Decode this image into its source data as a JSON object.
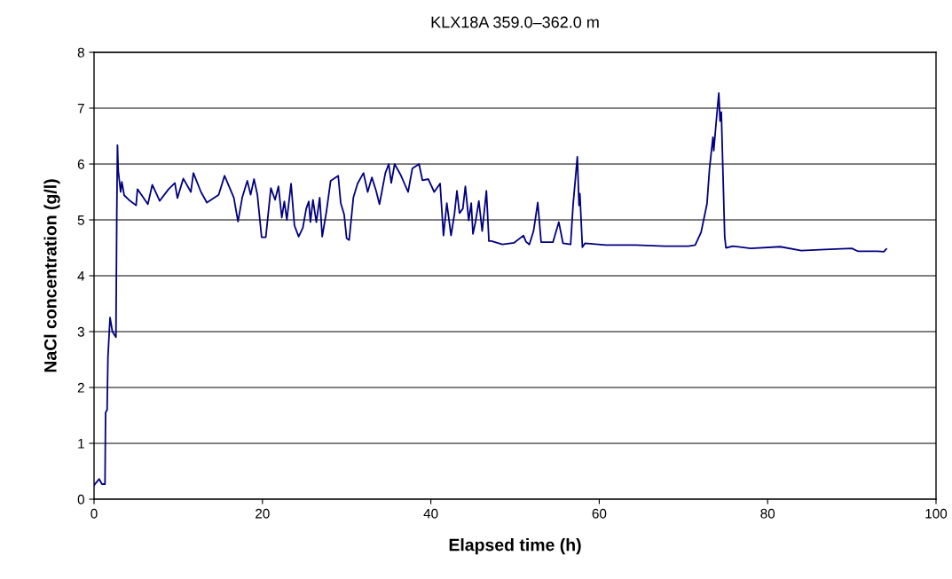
{
  "chart_data": {
    "type": "line",
    "title": "KLX18A 359.0–362.0 m",
    "xlabel": "Elapsed time (h)",
    "ylabel": "NaCl concentration (g/l)",
    "xlim": [
      0,
      100
    ],
    "xticks": [
      0,
      20,
      40,
      60,
      80,
      100
    ],
    "ylim": [
      0,
      8
    ],
    "yticks": [
      0,
      1,
      2,
      3,
      4,
      5,
      6,
      7,
      8
    ],
    "grid": "y",
    "marker": "none",
    "line_style": "solid",
    "series": [
      {
        "color": "#000080",
        "x": [
          0.0,
          0.6,
          0.95,
          1.3,
          1.37,
          1.55,
          1.65,
          1.83,
          1.9,
          2.18,
          2.6,
          2.7,
          2.78,
          2.88,
          3.16,
          3.3,
          3.58,
          4.28,
          4.99,
          5.16,
          6.39,
          6.92,
          7.8,
          8.85,
          9.6,
          9.9,
          10.6,
          11.5,
          11.8,
          12.7,
          13.4,
          14.8,
          15.5,
          16.6,
          17.1,
          17.6,
          18.2,
          18.6,
          19.0,
          19.4,
          19.9,
          20.4,
          21.0,
          21.5,
          21.9,
          22.3,
          22.6,
          22.9,
          23.4,
          23.8,
          24.3,
          24.8,
          25.2,
          25.5,
          25.7,
          26.0,
          26.4,
          26.8,
          27.1,
          27.6,
          28.1,
          29.0,
          29.3,
          29.7,
          30.0,
          30.3,
          30.8,
          31.3,
          32.0,
          32.5,
          33.0,
          33.5,
          33.9,
          34.2,
          34.6,
          35.0,
          35.3,
          35.7,
          36.4,
          37.3,
          37.8,
          38.6,
          39.0,
          39.7,
          40.4,
          41.1,
          41.5,
          41.9,
          42.4,
          42.8,
          43.1,
          43.4,
          43.8,
          44.1,
          44.5,
          44.8,
          45.0,
          45.3,
          45.7,
          46.1,
          46.6,
          46.9,
          47.2,
          48.5,
          49.9,
          51.0,
          51.3,
          51.7,
          52.2,
          52.7,
          53.1,
          54.5,
          55.2,
          55.7,
          56.6,
          56.9,
          57.4,
          57.6,
          57.7,
          58.0,
          58.3,
          60.8,
          64.3,
          67.8,
          70.6,
          71.4,
          72.1,
          72.8,
          73.1,
          73.5,
          73.6,
          73.9,
          74.2,
          74.35,
          74.5,
          74.9,
          75.05,
          75.9,
          78.0,
          81.5,
          84.0,
          86.8,
          90.0,
          90.7,
          93.1,
          93.8,
          94.1
        ],
        "values": [
          0.25,
          0.36,
          0.27,
          0.27,
          1.55,
          1.6,
          2.54,
          3.06,
          3.25,
          3.0,
          2.9,
          5.1,
          6.34,
          5.87,
          5.5,
          5.68,
          5.44,
          5.34,
          5.26,
          5.55,
          5.28,
          5.63,
          5.34,
          5.55,
          5.66,
          5.39,
          5.74,
          5.5,
          5.84,
          5.5,
          5.31,
          5.45,
          5.79,
          5.4,
          4.97,
          5.4,
          5.7,
          5.45,
          5.73,
          5.45,
          4.69,
          4.69,
          5.57,
          5.36,
          5.6,
          5.04,
          5.33,
          5.0,
          5.65,
          4.9,
          4.7,
          4.86,
          5.2,
          5.33,
          4.96,
          5.36,
          4.96,
          5.4,
          4.7,
          5.15,
          5.7,
          5.79,
          5.3,
          5.1,
          4.67,
          4.64,
          5.4,
          5.65,
          5.84,
          5.5,
          5.76,
          5.52,
          5.28,
          5.52,
          5.84,
          6.0,
          5.66,
          6.0,
          5.81,
          5.5,
          5.92,
          6.0,
          5.71,
          5.73,
          5.5,
          5.65,
          4.72,
          5.3,
          4.72,
          5.1,
          5.52,
          5.12,
          5.2,
          5.6,
          4.99,
          5.3,
          4.75,
          4.96,
          5.34,
          4.8,
          5.52,
          4.62,
          4.62,
          4.56,
          4.59,
          4.72,
          4.61,
          4.56,
          4.8,
          5.31,
          4.6,
          4.6,
          4.96,
          4.58,
          4.56,
          5.28,
          6.13,
          5.26,
          5.47,
          4.51,
          4.58,
          4.55,
          4.55,
          4.53,
          4.53,
          4.55,
          4.78,
          5.29,
          5.92,
          6.48,
          6.24,
          6.77,
          7.27,
          6.77,
          6.93,
          4.7,
          4.5,
          4.53,
          4.49,
          4.52,
          4.45,
          4.47,
          4.49,
          4.44,
          4.44,
          4.43,
          4.48
        ]
      }
    ]
  }
}
